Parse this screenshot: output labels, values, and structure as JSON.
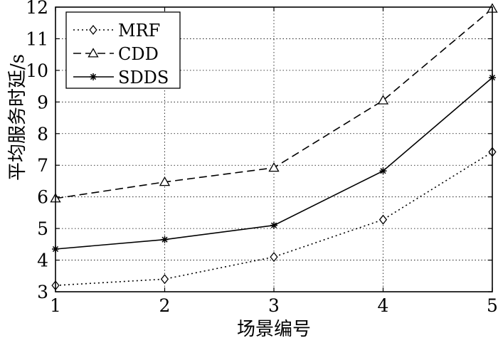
{
  "chart_data": {
    "type": "line",
    "xlabel": "场景编号",
    "ylabel": "平均服务时延/s",
    "x": [
      1,
      2,
      3,
      4,
      5
    ],
    "xlim": [
      1,
      5
    ],
    "ylim": [
      3,
      12
    ],
    "xticks": [
      "1",
      "2",
      "3",
      "4",
      "5"
    ],
    "yticks": [
      "3",
      "4",
      "5",
      "6",
      "7",
      "8",
      "9",
      "10",
      "11",
      "12"
    ],
    "grid": "dotted",
    "legend_position": "top-left",
    "series": [
      {
        "name": "MRF",
        "values": [
          3.2,
          3.4,
          4.1,
          5.28,
          7.42
        ],
        "line": "dotted",
        "marker": "diamond",
        "color": "#000000"
      },
      {
        "name": "CDD",
        "values": [
          5.95,
          6.47,
          6.92,
          9.05,
          11.95
        ],
        "line": "dashed",
        "marker": "triangle",
        "color": "#000000"
      },
      {
        "name": "SDDS",
        "values": [
          4.35,
          4.65,
          5.1,
          6.82,
          9.77
        ],
        "line": "solid",
        "marker": "star",
        "color": "#000000"
      }
    ]
  }
}
